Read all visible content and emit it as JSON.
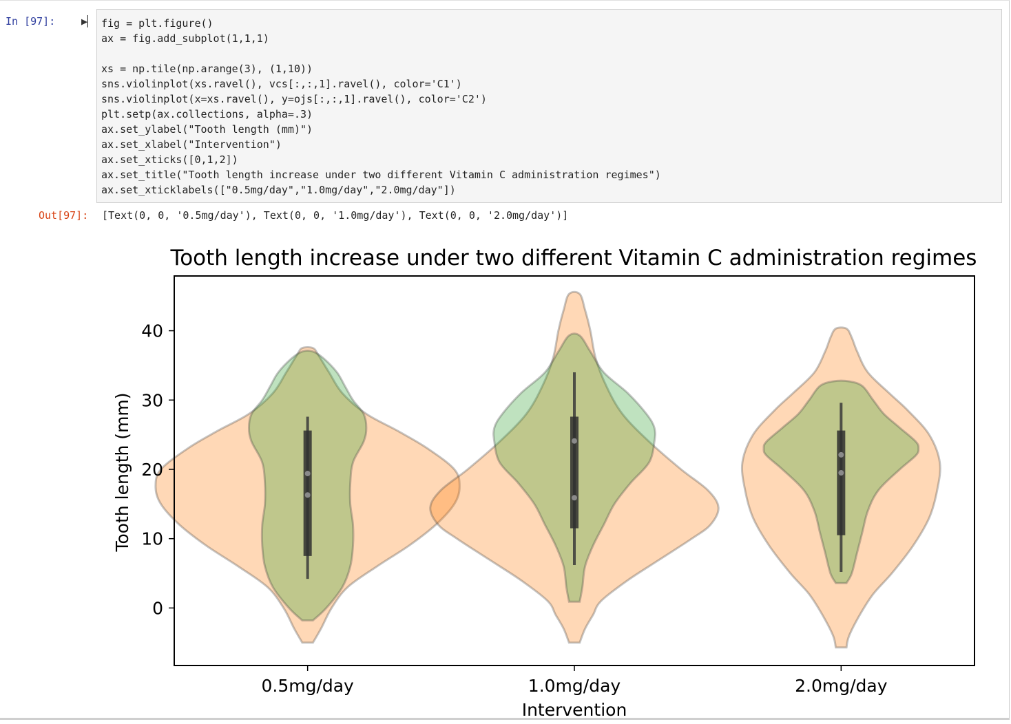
{
  "cell": {
    "in_prompt": "In  [97]:",
    "run_glyph": "▶▏",
    "code_lines": [
      "fig = plt.figure()",
      "ax = fig.add_subplot(1,1,1)",
      "",
      "xs = np.tile(np.arange(3), (1,10))",
      "sns.violinplot(xs.ravel(), vcs[:,:,1].ravel(), color='C1')",
      "sns.violinplot(x=xs.ravel(), y=ojs[:,:,1].ravel(), color='C2')",
      "plt.setp(ax.collections, alpha=.3)",
      "ax.set_ylabel(\"Tooth length (mm)\")",
      "ax.set_xlabel(\"Intervention\")",
      "ax.set_xticks([0,1,2])",
      "ax.set_title(\"Tooth length increase under two different Vitamin C administration regimes\")",
      "ax.set_xticklabels([\"0.5mg/day\",\"1.0mg/day\",\"2.0mg/day\"])"
    ],
    "out_prompt": "Out[97]:",
    "output_text": "[Text(0, 0, '0.5mg/day'), Text(0, 0, '1.0mg/day'), Text(0, 0, '2.0mg/day')]"
  },
  "chart_data": {
    "type": "violin",
    "title": "Tooth length increase under two different Vitamin C administration regimes",
    "xlabel": "Intervention",
    "ylabel": "Tooth length (mm)",
    "categories": [
      "0.5mg/day",
      "1.0mg/day",
      "2.0mg/day"
    ],
    "yticks": [
      0,
      10,
      20,
      30,
      40
    ],
    "ylim": [
      -8.3,
      47.9
    ],
    "xlim": [
      -0.5,
      2.5
    ],
    "series": [
      {
        "color": "#ff7f0e",
        "alpha": 0.3,
        "violins": [
          {
            "profile": [
              [
                -5.0,
                0.02
              ],
              [
                -3.0,
                0.05
              ],
              [
                0,
                0.09
              ],
              [
                3,
                0.15
              ],
              [
                6,
                0.26
              ],
              [
                9,
                0.38
              ],
              [
                12,
                0.48
              ],
              [
                15,
                0.55
              ],
              [
                17.5,
                0.57
              ],
              [
                20,
                0.55
              ],
              [
                23,
                0.45
              ],
              [
                25.5,
                0.34
              ],
              [
                28,
                0.22
              ],
              [
                31,
                0.13
              ],
              [
                34,
                0.08
              ],
              [
                36.5,
                0.04
              ],
              [
                37.5,
                0.02
              ]
            ]
          },
          {
            "profile": [
              [
                -5.0,
                0.02
              ],
              [
                -3,
                0.04
              ],
              [
                -1,
                0.07
              ],
              [
                1,
                0.1
              ],
              [
                4,
                0.2
              ],
              [
                7,
                0.32
              ],
              [
                10,
                0.44
              ],
              [
                12,
                0.51
              ],
              [
                14.5,
                0.54
              ],
              [
                17,
                0.5
              ],
              [
                20,
                0.4
              ],
              [
                24,
                0.28
              ],
              [
                28,
                0.18
              ],
              [
                32,
                0.12
              ],
              [
                36,
                0.08
              ],
              [
                40,
                0.06
              ],
              [
                43,
                0.04
              ],
              [
                45.3,
                0.02
              ]
            ]
          },
          {
            "profile": [
              [
                -5.7,
                0.02
              ],
              [
                -4,
                0.03
              ],
              [
                -1,
                0.07
              ],
              [
                2,
                0.12
              ],
              [
                5,
                0.19
              ],
              [
                9,
                0.27
              ],
              [
                13,
                0.33
              ],
              [
                17,
                0.36
              ],
              [
                21,
                0.37
              ],
              [
                25,
                0.33
              ],
              [
                28.5,
                0.25
              ],
              [
                31,
                0.18
              ],
              [
                34,
                0.1
              ],
              [
                37,
                0.06
              ],
              [
                39,
                0.04
              ],
              [
                40.3,
                0.02
              ]
            ]
          }
        ]
      },
      {
        "color": "#2ca02c",
        "alpha": 0.3,
        "violins": [
          {
            "profile": [
              [
                -1.8,
                0.02
              ],
              [
                0,
                0.07
              ],
              [
                3,
                0.13
              ],
              [
                6,
                0.16
              ],
              [
                9,
                0.17
              ],
              [
                12,
                0.17
              ],
              [
                15,
                0.16
              ],
              [
                18,
                0.16
              ],
              [
                21,
                0.17
              ],
              [
                24,
                0.21
              ],
              [
                26,
                0.22
              ],
              [
                28,
                0.21
              ],
              [
                30,
                0.17
              ],
              [
                32,
                0.14
              ],
              [
                34,
                0.11
              ],
              [
                36,
                0.06
              ],
              [
                37,
                0.02
              ]
            ]
          },
          {
            "profile": [
              [
                0.9,
                0.02
              ],
              [
                3,
                0.03
              ],
              [
                6,
                0.04
              ],
              [
                9,
                0.07
              ],
              [
                12,
                0.11
              ],
              [
                15,
                0.15
              ],
              [
                18,
                0.21
              ],
              [
                21,
                0.28
              ],
              [
                24,
                0.3
              ],
              [
                26,
                0.3
              ],
              [
                28,
                0.27
              ],
              [
                31,
                0.2
              ],
              [
                34,
                0.11
              ],
              [
                37,
                0.06
              ],
              [
                39.3,
                0.02
              ]
            ]
          },
          {
            "profile": [
              [
                3.6,
                0.02
              ],
              [
                5,
                0.04
              ],
              [
                8,
                0.06
              ],
              [
                11,
                0.08
              ],
              [
                14,
                0.1
              ],
              [
                17,
                0.14
              ],
              [
                20,
                0.22
              ],
              [
                22,
                0.28
              ],
              [
                23,
                0.29
              ],
              [
                24,
                0.28
              ],
              [
                26,
                0.22
              ],
              [
                28,
                0.16
              ],
              [
                30,
                0.12
              ],
              [
                32,
                0.08
              ],
              [
                32.7,
                0.03
              ]
            ]
          }
        ]
      }
    ],
    "boxes": [
      {
        "whisker": [
          4.2,
          27.6
        ],
        "q1": 7.5,
        "q3": 25.6,
        "medians": [
          16.3,
          19.4
        ]
      },
      {
        "whisker": [
          6.2,
          34.0
        ],
        "q1": 11.5,
        "q3": 27.6,
        "medians": [
          15.9,
          24.1
        ]
      },
      {
        "whisker": [
          5.2,
          29.6
        ],
        "q1": 10.5,
        "q3": 25.6,
        "medians": [
          19.5,
          22.1
        ]
      }
    ]
  }
}
